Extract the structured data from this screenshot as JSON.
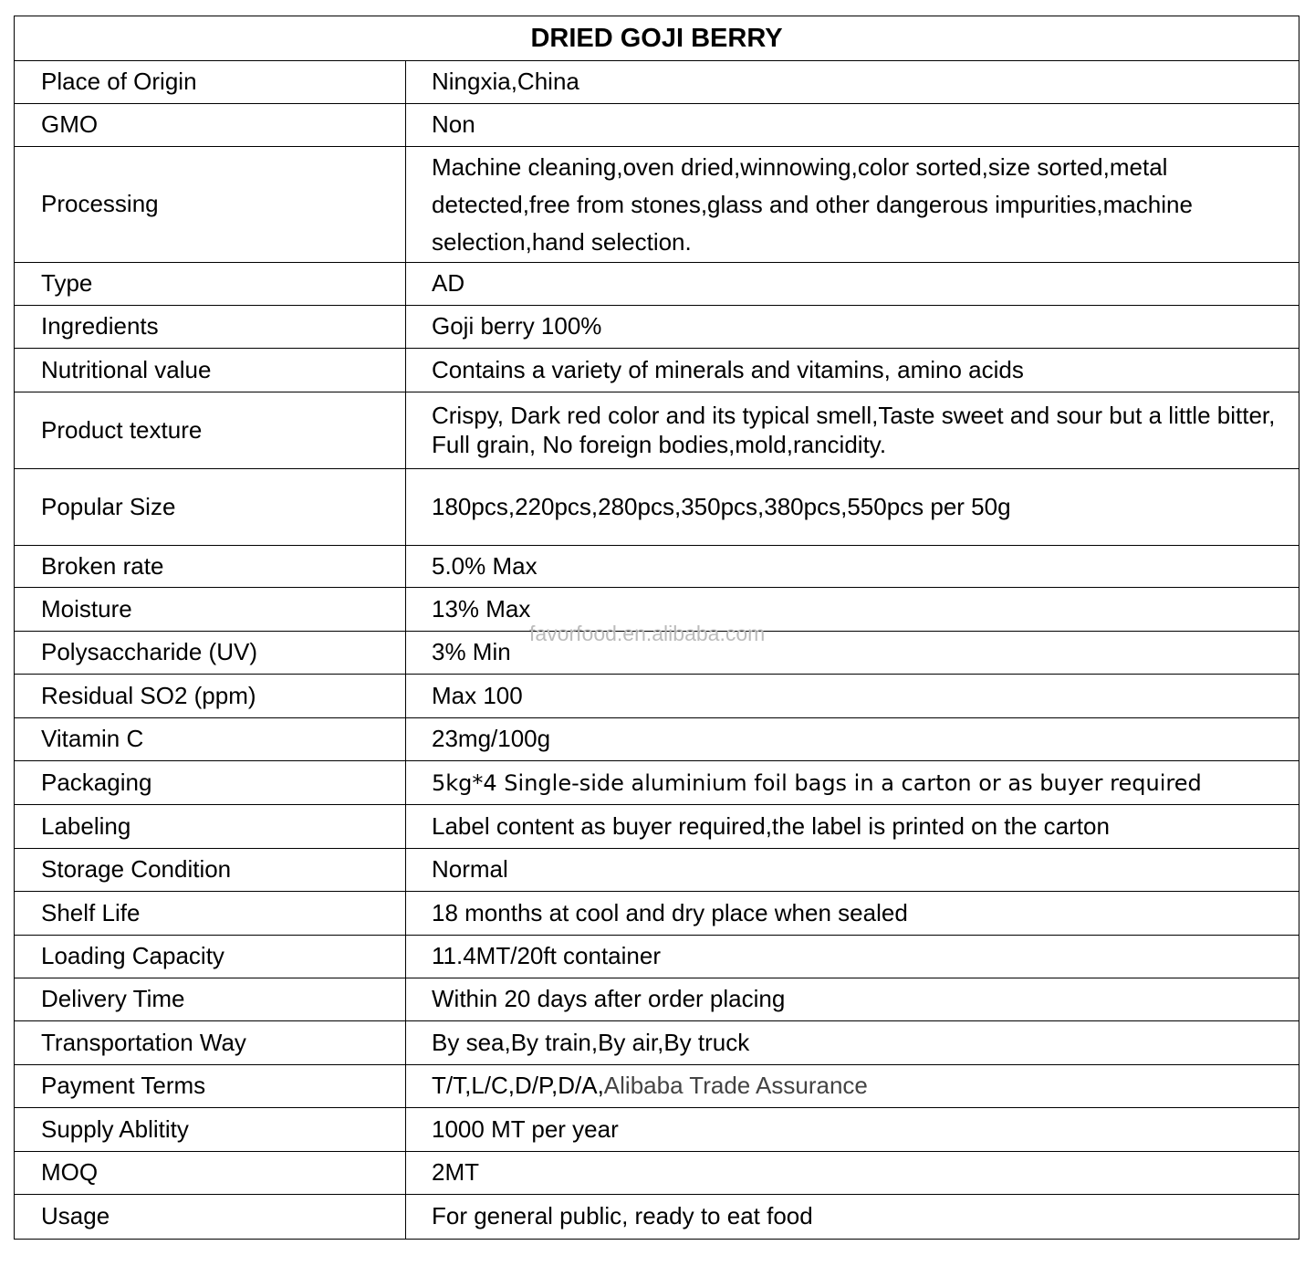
{
  "title": "DRIED GOJI BERRY",
  "watermark": "favorfood.en.alibaba.com",
  "rows": [
    {
      "label": "Place of Origin",
      "value": "Ningxia,China"
    },
    {
      "label": "GMO",
      "value": "Non"
    },
    {
      "label": "Processing",
      "value": "Machine cleaning,oven dried,winnowing,color sorted,size sorted,metal detected,free from stones,glass and other dangerous impurities,machine selection,hand selection."
    },
    {
      "label": "Type",
      "value": "AD"
    },
    {
      "label": "Ingredients",
      "value": "Goji berry 100%"
    },
    {
      "label": "Nutritional value",
      "value": "Contains a variety of minerals and vitamins, amino acids"
    },
    {
      "label": "Product texture",
      "value": "Crispy, Dark red color and its typical smell,Taste sweet and sour but a little bitter, Full grain, No foreign bodies,mold,rancidity."
    },
    {
      "label": "Popular Size",
      "value": "180pcs,220pcs,280pcs,350pcs,380pcs,550pcs per 50g"
    },
    {
      "label": "Broken rate",
      "value": "5.0% Max"
    },
    {
      "label": "Moisture",
      "value": "13% Max"
    },
    {
      "label": "Polysaccharide (UV)",
      "value": "3% Min"
    },
    {
      "label": "Residual SO2 (ppm)",
      "value": "Max 100"
    },
    {
      "label": "Vitamin C",
      "value": "23mg/100g"
    },
    {
      "label": "Packaging",
      "value": "5kg*4 Single-side aluminium foil bags in a carton or as buyer required"
    },
    {
      "label": "Labeling",
      "value": "Label content as buyer required,the label is printed on the carton"
    },
    {
      "label": "Storage Condition",
      "value": "Normal"
    },
    {
      "label": "Shelf Life",
      "value": "18 months at cool and dry place when sealed"
    },
    {
      "label": "Loading Capacity",
      "value": "11.4MT/20ft container"
    },
    {
      "label": "Delivery Time",
      "value": "Within 20 days after order placing"
    },
    {
      "label": "Transportation Way",
      "value": "By sea,By train,By air,By truck"
    },
    {
      "label": "Payment Terms",
      "value": "T/T,L/C,D/P,D/A,",
      "value_extra": "Alibaba Trade Assurance"
    },
    {
      "label": "Supply Ablitity",
      "value": "1000 MT per year"
    },
    {
      "label": "MOQ",
      "value": "2MT"
    },
    {
      "label": "Usage",
      "value": "For general public, ready to eat food"
    }
  ]
}
